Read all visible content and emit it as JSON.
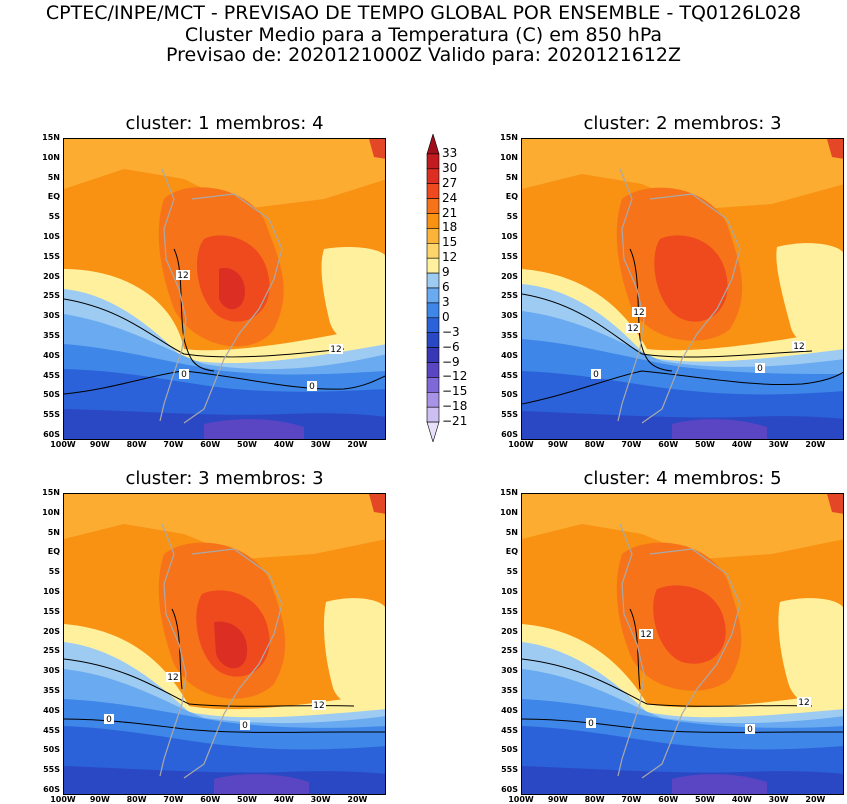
{
  "header": {
    "line1": "CPTEC/INPE/MCT - PREVISAO DE TEMPO GLOBAL POR ENSEMBLE - TQ0126L028",
    "line2": "Cluster Medio para a Temperatura (C) em 850 hPa",
    "line3": "Previsao de: 2020121000Z   Valido para: 2020121612Z"
  },
  "panels": [
    {
      "title": "cluster: 1   membros: 4"
    },
    {
      "title": "cluster: 2   membros: 3"
    },
    {
      "title": "cluster: 3   membros: 3"
    },
    {
      "title": "cluster: 4   membros: 5"
    }
  ],
  "axes": {
    "lat_labels": [
      "15N",
      "10N",
      "5N",
      "EQ",
      "5S",
      "10S",
      "15S",
      "20S",
      "25S",
      "30S",
      "35S",
      "40S",
      "45S",
      "50S",
      "55S",
      "60S"
    ],
    "lon_labels": [
      "100W",
      "90W",
      "80W",
      "70W",
      "60W",
      "50W",
      "40W",
      "30W",
      "20W"
    ]
  },
  "contour_labels": {
    "warm": "12",
    "cold": "0"
  },
  "colorbar": {
    "levels": [
      "33",
      "30",
      "27",
      "24",
      "21",
      "18",
      "15",
      "12",
      "9",
      "6",
      "3",
      "0",
      "-3",
      "-6",
      "-9",
      "-12",
      "-15",
      "-18",
      "-21"
    ],
    "colors": [
      "#a0101a",
      "#c21b20",
      "#dd2e24",
      "#ee4a1e",
      "#f7731a",
      "#f99112",
      "#fbb33a",
      "#fed56a",
      "#fff09e",
      "#9ecbf2",
      "#6aaaf0",
      "#3e86e8",
      "#2c62d9",
      "#2a48c4",
      "#3838b6",
      "#5a45c3",
      "#7f68d8",
      "#a893e6",
      "#cdbff2",
      "#e8e0fa"
    ]
  },
  "chart_data": {
    "type": "heatmap",
    "variable": "Temperatura (C) em 850 hPa",
    "lat_range": [
      "15N",
      "60S"
    ],
    "lon_range": [
      "100W",
      "20W"
    ],
    "contours": [
      12,
      0
    ],
    "panels": [
      {
        "cluster": 1,
        "membros": 4,
        "max_center": [
          "20S",
          "57W"
        ]
      },
      {
        "cluster": 2,
        "membros": 3,
        "max_center": [
          "18S",
          "58W"
        ]
      },
      {
        "cluster": 3,
        "membros": 3,
        "max_center": [
          "21S",
          "58W"
        ]
      },
      {
        "cluster": 4,
        "membros": 5,
        "max_center": [
          "15S",
          "58W"
        ]
      }
    ]
  }
}
